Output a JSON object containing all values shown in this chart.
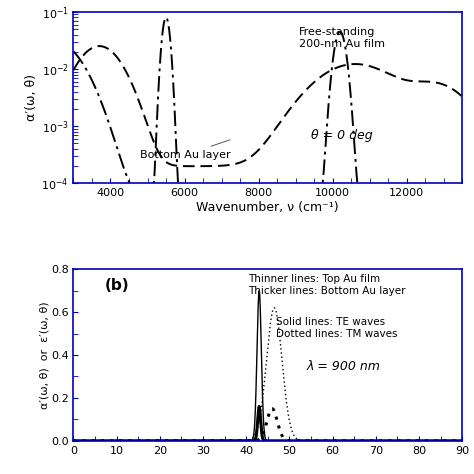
{
  "panel_a": {
    "xlabel": "Wavenumber, ν (cm⁻¹)",
    "ylabel": "α′(ω, θ)",
    "xlim": [
      3000,
      13500
    ],
    "ylim": [
      0.0001,
      0.1
    ],
    "xticks": [
      4000,
      6000,
      8000,
      10000,
      12000
    ],
    "ytick_labels": [
      "10⁻⁴",
      "10⁻³",
      "10⁻²",
      "10⁻¹"
    ],
    "theta_label": "θ = 0 deg",
    "annotation_bottom": "Bottom Au layer",
    "annotation_free": "Free-standing\n200-nm Au film",
    "spine_color": "#0000bb",
    "curve_color": "#000000"
  },
  "panel_b": {
    "ylabel": "α′(ω, θ)  or  ε′(ω, θ)",
    "xlim": [
      0,
      90
    ],
    "ylim": [
      0,
      0.8
    ],
    "yticks": [
      0.0,
      0.2,
      0.4,
      0.6,
      0.8
    ],
    "label": "(b)",
    "annotation1": "Thinner lines: Top Au film\nThicker lines: Bottom Au layer",
    "annotation2": "Solid lines: TE waves\nDotted lines: TM waves",
    "lambda_label": "λ = 900 nm",
    "spine_color": "#0000bb",
    "curve_color": "#000000"
  }
}
